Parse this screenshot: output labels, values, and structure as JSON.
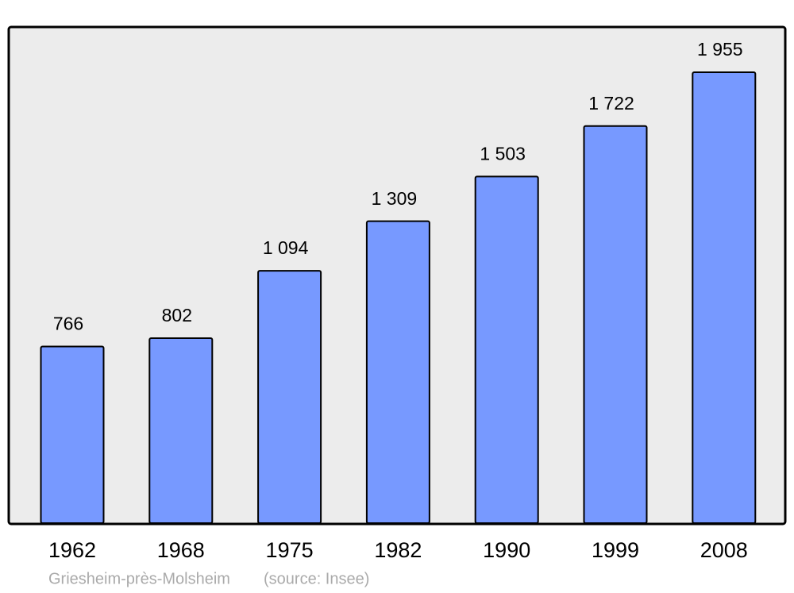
{
  "chart_data": {
    "type": "bar",
    "categories": [
      "1962",
      "1968",
      "1975",
      "1982",
      "1990",
      "1999",
      "2008"
    ],
    "values": [
      766,
      802,
      1094,
      1309,
      1503,
      1722,
      1955
    ],
    "value_labels": [
      "766",
      "802",
      "1 094",
      "1 309",
      "1 503",
      "1 722",
      "1 955"
    ],
    "color": "#7799ff",
    "caption": "Griesheim-près-Molsheim",
    "source": "(source: Insee)"
  }
}
